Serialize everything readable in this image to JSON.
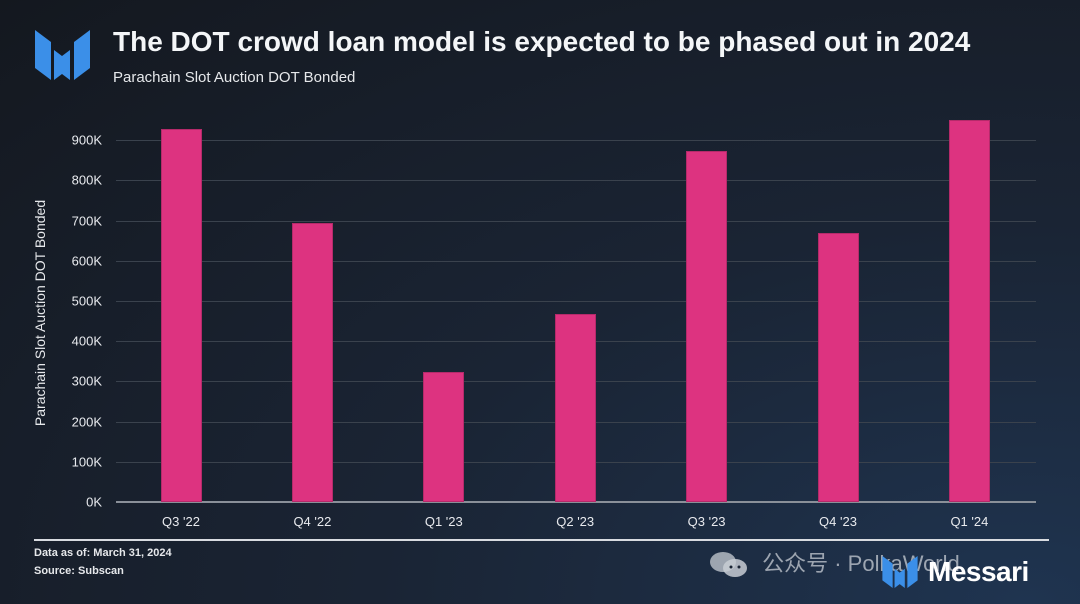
{
  "header": {
    "title": "The DOT crowd loan model is expected to be phased out in 2024",
    "subtitle": "Parachain Slot Auction DOT Bonded"
  },
  "footer": {
    "data_as_of": "Data as of: March 31, 2024",
    "source": "Source: Subscan",
    "watermark": "公众号 · PolkaWorld",
    "brand": "Messari"
  },
  "colors": {
    "bar": "#dd3380",
    "logo_blue": "#3b8fe8",
    "background": "#161b23"
  },
  "chart_data": {
    "type": "bar",
    "title": "The DOT crowd loan model is expected to be phased out in 2024",
    "subtitle": "Parachain Slot Auction DOT Bonded",
    "xlabel": "",
    "ylabel": "Parachain Slot Auction DOT Bonded",
    "categories": [
      "Q3 '22",
      "Q4 '22",
      "Q1 '23",
      "Q2 '23",
      "Q3 '23",
      "Q4 '23",
      "Q1 '24"
    ],
    "values": [
      928000,
      693000,
      323000,
      468000,
      873000,
      668000,
      950000
    ],
    "yticks": [
      "0K",
      "100K",
      "200K",
      "300K",
      "400K",
      "500K",
      "600K",
      "700K",
      "800K",
      "900K"
    ],
    "ylim": [
      0,
      1000000
    ],
    "grid": true,
    "legend": null
  }
}
